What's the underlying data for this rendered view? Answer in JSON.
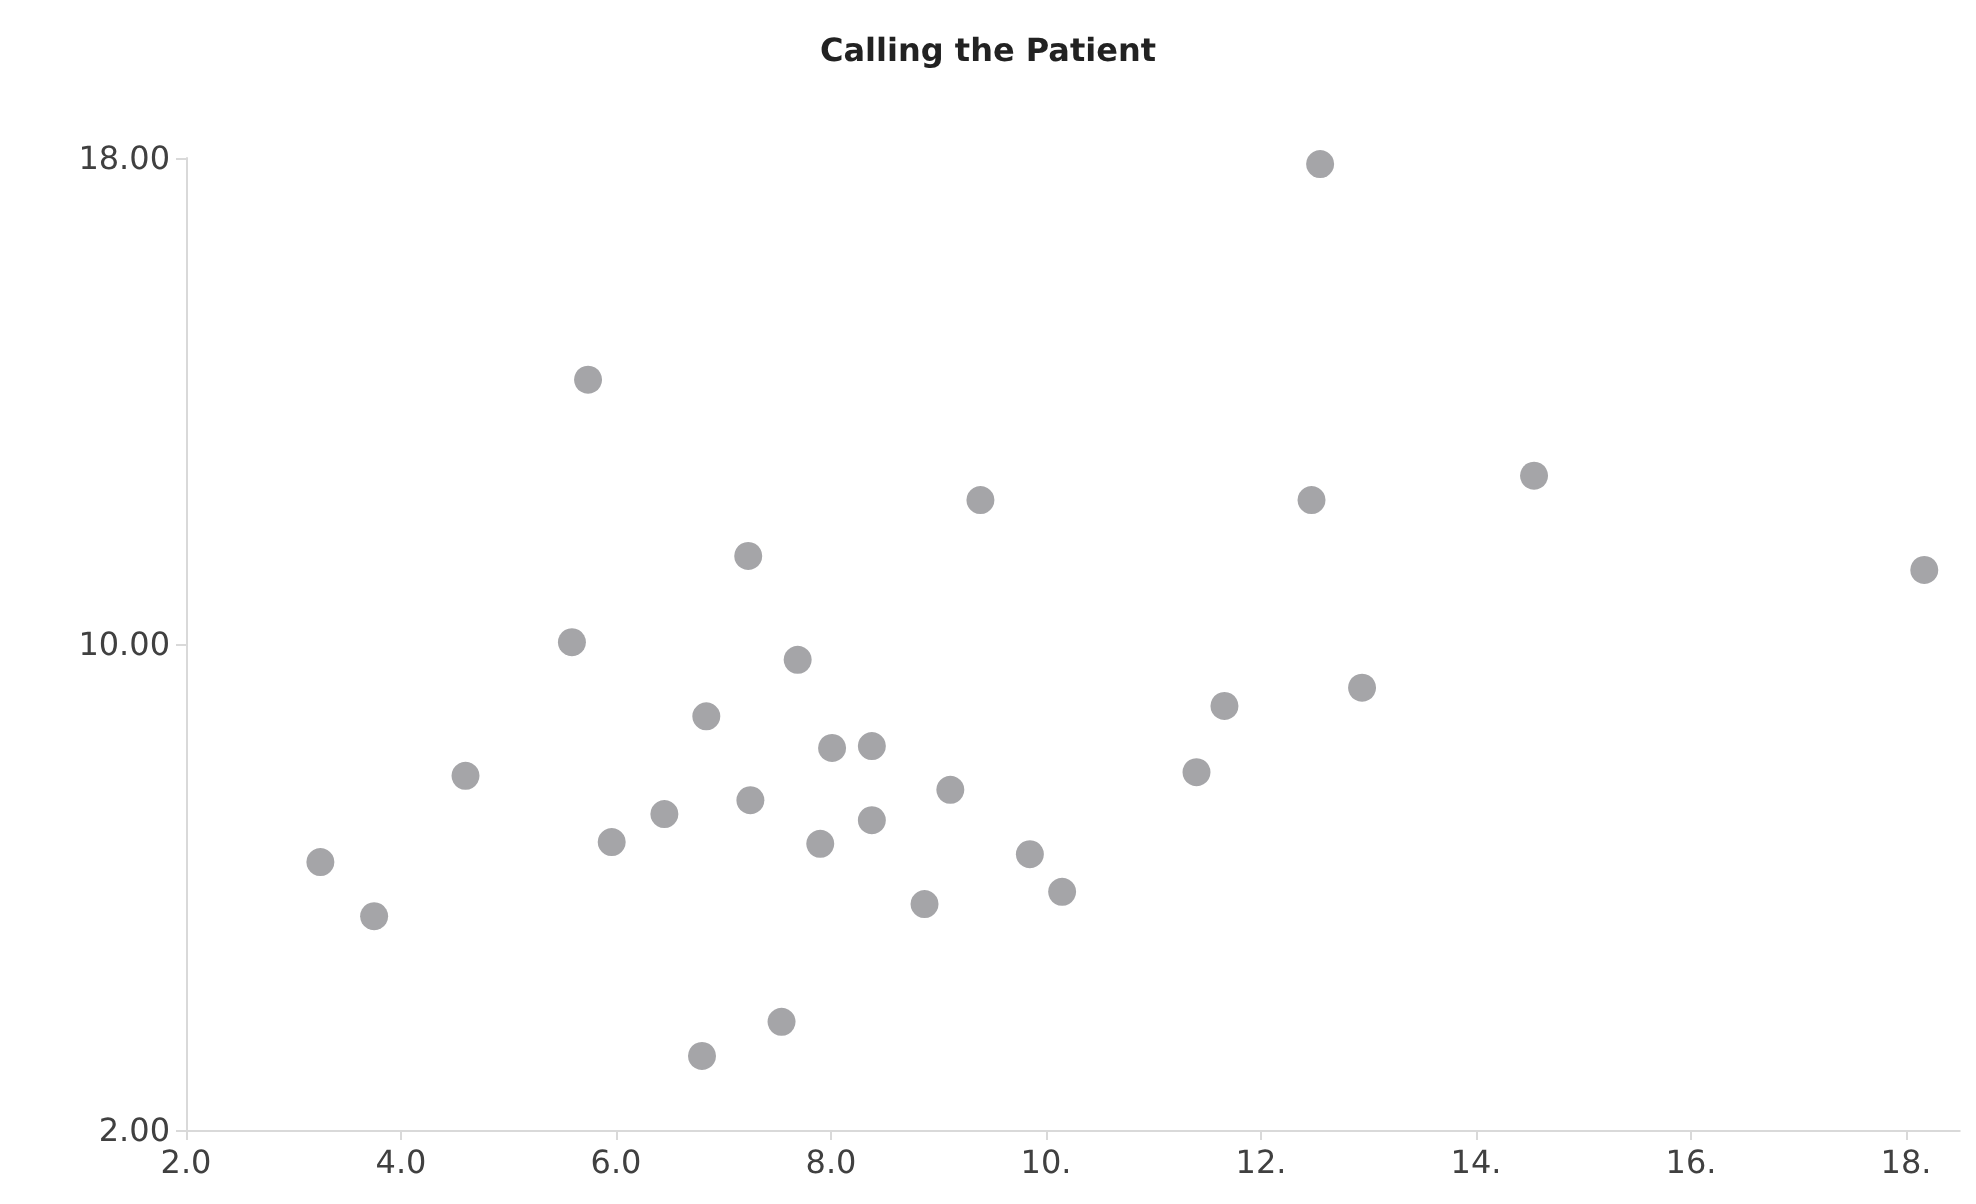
{
  "chart_data": {
    "type": "scatter",
    "title": "Calling the Patient",
    "x": [
      3.25,
      3.75,
      4.6,
      5.59,
      5.74,
      5.96,
      6.45,
      6.8,
      6.84,
      7.23,
      7.25,
      7.54,
      7.69,
      7.9,
      8.01,
      8.38,
      8.38,
      8.87,
      9.11,
      9.39,
      9.85,
      10.15,
      11.4,
      11.66,
      12.47,
      12.55,
      12.94,
      14.54,
      18.17
    ],
    "series": [
      {
        "color": "#a5a5a8",
        "values": [
          6.41,
          5.52,
          7.83,
          10.03,
          14.35,
          6.74,
          7.2,
          3.22,
          8.81,
          11.45,
          7.43,
          3.78,
          9.74,
          6.71,
          8.29,
          8.32,
          7.1,
          5.72,
          7.6,
          12.37,
          6.54,
          5.92,
          7.89,
          8.98,
          12.37,
          17.9,
          9.28,
          12.77,
          11.22
        ]
      }
    ],
    "xlim": [
      2,
      18.5
    ],
    "xticks": [
      {
        "value": 2,
        "label": "2.0"
      },
      {
        "value": 4,
        "label": "4.0"
      },
      {
        "value": 6,
        "label": "6.0"
      },
      {
        "value": 8,
        "label": "8.0"
      },
      {
        "value": 10,
        "label": "10."
      },
      {
        "value": 12,
        "label": "12."
      },
      {
        "value": 14,
        "label": "14."
      },
      {
        "value": 16,
        "label": "16."
      },
      {
        "value": 18,
        "label": "18."
      }
    ],
    "ylim": [
      2,
      18
    ],
    "yticks": [
      {
        "value": 2,
        "label": "2.00"
      },
      {
        "value": 10,
        "label": "10.00"
      },
      {
        "value": 18,
        "label": "18.00"
      }
    ],
    "grid": false,
    "marker": "circle"
  }
}
